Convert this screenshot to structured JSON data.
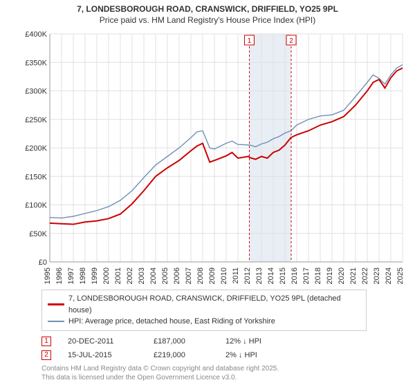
{
  "title_line1": "7, LONDESBOROUGH ROAD, CRANSWICK, DRIFFIELD, YO25 9PL",
  "title_line2": "Price paid vs. HM Land Registry's House Price Index (HPI)",
  "chart": {
    "type": "line",
    "background_color": "#ffffff",
    "grid_color": "#e0e0e0",
    "x_years": [
      1995,
      1996,
      1997,
      1998,
      1999,
      2000,
      2001,
      2002,
      2003,
      2004,
      2005,
      2006,
      2007,
      2008,
      2009,
      2010,
      2011,
      2012,
      2013,
      2014,
      2015,
      2016,
      2017,
      2018,
      2019,
      2020,
      2021,
      2022,
      2023,
      2024,
      2025
    ],
    "ylim": [
      0,
      400000
    ],
    "ytick_step": 50000,
    "ytick_labels": [
      "£0",
      "£50K",
      "£100K",
      "£150K",
      "£200K",
      "£250K",
      "£300K",
      "£350K",
      "£400K"
    ],
    "band": {
      "start_year": 2011.97,
      "end_year": 2015.53,
      "fill": "#e9eef5"
    },
    "series": [
      {
        "name": "price_paid",
        "color": "#cc0000",
        "width": 2,
        "points": [
          [
            1995,
            68000
          ],
          [
            1996,
            67000
          ],
          [
            1997,
            66000
          ],
          [
            1998,
            70000
          ],
          [
            1999,
            72000
          ],
          [
            2000,
            76000
          ],
          [
            2001,
            84000
          ],
          [
            2002,
            102000
          ],
          [
            2003,
            125000
          ],
          [
            2004,
            150000
          ],
          [
            2005,
            165000
          ],
          [
            2006,
            178000
          ],
          [
            2007,
            195000
          ],
          [
            2007.5,
            203000
          ],
          [
            2008,
            208000
          ],
          [
            2008.6,
            175000
          ],
          [
            2009,
            178000
          ],
          [
            2010,
            186000
          ],
          [
            2010.5,
            192000
          ],
          [
            2011,
            182000
          ],
          [
            2011.9,
            185000
          ],
          [
            2012,
            183000
          ],
          [
            2012.5,
            180000
          ],
          [
            2013,
            185000
          ],
          [
            2013.5,
            182000
          ],
          [
            2014,
            192000
          ],
          [
            2014.5,
            196000
          ],
          [
            2015,
            205000
          ],
          [
            2015.5,
            218000
          ],
          [
            2016,
            223000
          ],
          [
            2017,
            230000
          ],
          [
            2018,
            240000
          ],
          [
            2019,
            246000
          ],
          [
            2020,
            255000
          ],
          [
            2021,
            275000
          ],
          [
            2022,
            300000
          ],
          [
            2022.5,
            315000
          ],
          [
            2023,
            320000
          ],
          [
            2023.5,
            305000
          ],
          [
            2024,
            323000
          ],
          [
            2024.5,
            335000
          ],
          [
            2025,
            340000
          ]
        ]
      },
      {
        "name": "hpi",
        "color": "#6f8fb5",
        "width": 1.4,
        "points": [
          [
            1995,
            78000
          ],
          [
            1996,
            77000
          ],
          [
            1997,
            80000
          ],
          [
            1998,
            85000
          ],
          [
            1999,
            90000
          ],
          [
            2000,
            97000
          ],
          [
            2001,
            108000
          ],
          [
            2002,
            125000
          ],
          [
            2003,
            148000
          ],
          [
            2004,
            170000
          ],
          [
            2005,
            185000
          ],
          [
            2006,
            200000
          ],
          [
            2007,
            218000
          ],
          [
            2007.5,
            228000
          ],
          [
            2008,
            230000
          ],
          [
            2008.6,
            200000
          ],
          [
            2009,
            198000
          ],
          [
            2010,
            208000
          ],
          [
            2010.5,
            212000
          ],
          [
            2011,
            206000
          ],
          [
            2012,
            205000
          ],
          [
            2012.5,
            202000
          ],
          [
            2013,
            207000
          ],
          [
            2013.5,
            210000
          ],
          [
            2014,
            216000
          ],
          [
            2014.5,
            220000
          ],
          [
            2015,
            226000
          ],
          [
            2015.5,
            230000
          ],
          [
            2016,
            240000
          ],
          [
            2017,
            250000
          ],
          [
            2018,
            256000
          ],
          [
            2019,
            258000
          ],
          [
            2020,
            266000
          ],
          [
            2021,
            290000
          ],
          [
            2022,
            315000
          ],
          [
            2022.5,
            328000
          ],
          [
            2023,
            322000
          ],
          [
            2023.5,
            312000
          ],
          [
            2024,
            328000
          ],
          [
            2024.5,
            340000
          ],
          [
            2025,
            346000
          ]
        ]
      }
    ],
    "markers": [
      {
        "label": "1",
        "year": 2011.97,
        "color": "#cc0000"
      },
      {
        "label": "2",
        "year": 2015.53,
        "color": "#cc0000"
      }
    ],
    "marker_dash": "3,3"
  },
  "legend": {
    "series1_color": "#cc0000",
    "series1_label": "7, LONDESBOROUGH ROAD, CRANSWICK, DRIFFIELD, YO25 9PL (detached house)",
    "series2_color": "#6f8fb5",
    "series2_label": "HPI: Average price, detached house, East Riding of Yorkshire"
  },
  "transactions": [
    {
      "marker": "1",
      "color": "#cc0000",
      "date": "20-DEC-2011",
      "price": "£187,000",
      "delta": "12% ↓ HPI"
    },
    {
      "marker": "2",
      "color": "#cc0000",
      "date": "15-JUL-2015",
      "price": "£219,000",
      "delta": "2% ↓ HPI"
    }
  ],
  "footer_line1": "Contains HM Land Registry data © Crown copyright and database right 2025.",
  "footer_line2": "This data is licensed under the Open Government Licence v3.0."
}
